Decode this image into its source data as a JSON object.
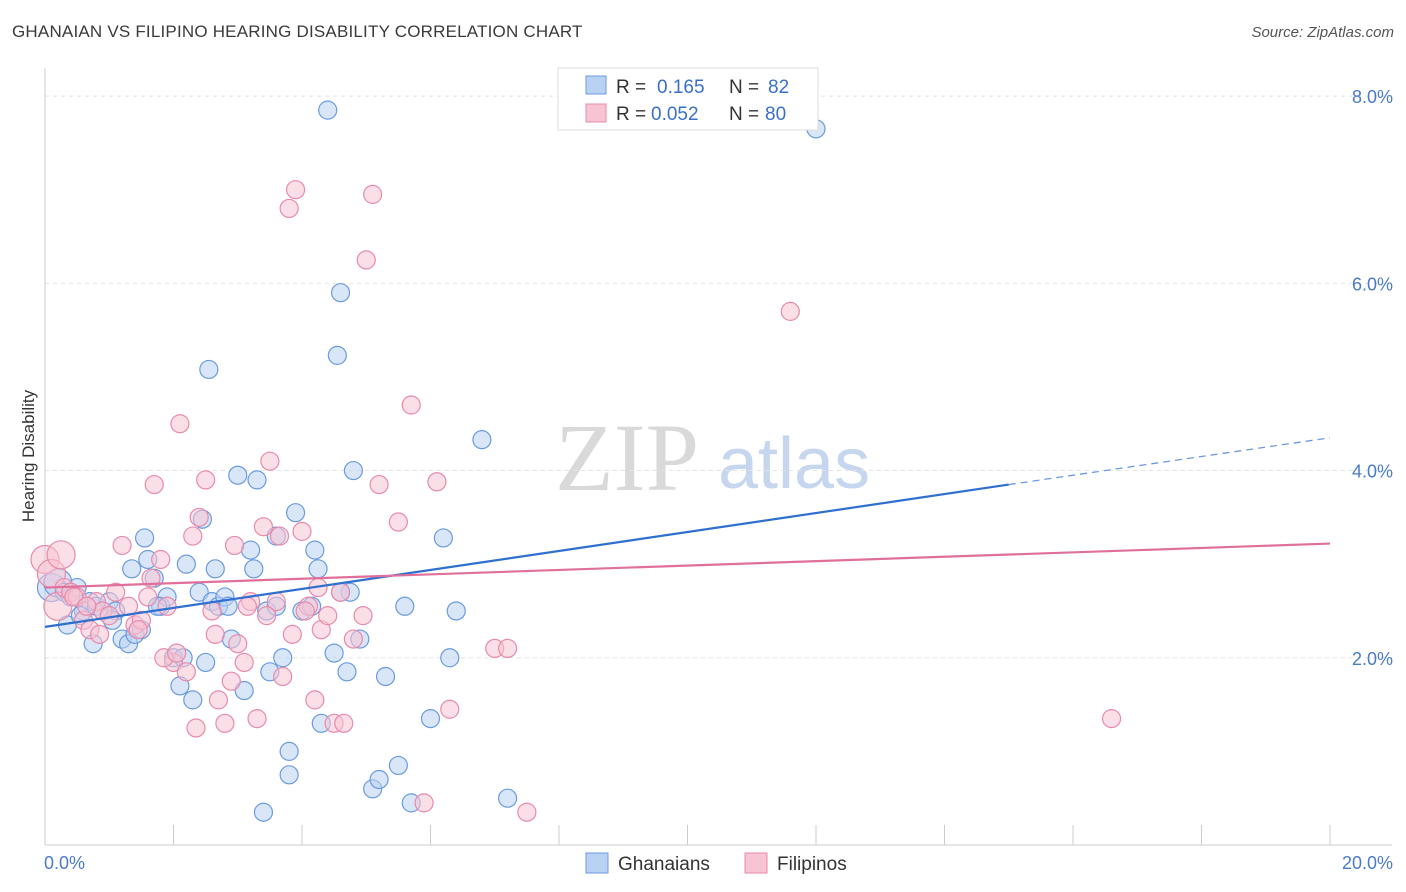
{
  "header": {
    "title": "GHANAIAN VS FILIPINO HEARING DISABILITY CORRELATION CHART",
    "source": "Source: ZipAtlas.com"
  },
  "watermark": {
    "zip": "ZIP",
    "atlas": "atlas"
  },
  "chart_data": {
    "type": "scatter",
    "title": "GHANAIAN VS FILIPINO HEARING DISABILITY CORRELATION CHART",
    "ylabel": "Hearing Disability",
    "xlabel": "",
    "xlim": [
      0,
      20
    ],
    "ylim": [
      0,
      8.3
    ],
    "x_tick_labels": [
      "0.0%",
      "20.0%"
    ],
    "y_ticks": [
      2,
      4,
      6,
      8
    ],
    "y_tick_labels": [
      "2.0%",
      "4.0%",
      "6.0%",
      "8.0%"
    ],
    "grid": true,
    "legend_position": "top-center",
    "series": [
      {
        "name": "Ghanaians",
        "color": "#6a9be0",
        "fill": "#b9d1f3",
        "R": "0.165",
        "N": "82",
        "trend": {
          "x0": 0,
          "y0": 2.33,
          "x1": 15.0,
          "y1": 3.85,
          "x_dash_end": 20,
          "y_dash_end": 4.35
        },
        "points": [
          [
            0.1,
            2.75
          ],
          [
            0.2,
            2.8
          ],
          [
            0.3,
            2.7
          ],
          [
            0.4,
            2.65
          ],
          [
            0.5,
            2.75
          ],
          [
            0.6,
            2.5
          ],
          [
            0.7,
            2.6
          ],
          [
            0.8,
            2.55
          ],
          [
            0.9,
            2.5
          ],
          [
            1.0,
            2.6
          ],
          [
            1.1,
            2.5
          ],
          [
            1.2,
            2.2
          ],
          [
            1.3,
            2.15
          ],
          [
            1.4,
            2.25
          ],
          [
            1.5,
            2.3
          ],
          [
            1.6,
            3.05
          ],
          [
            1.7,
            2.85
          ],
          [
            1.8,
            2.55
          ],
          [
            1.9,
            2.65
          ],
          [
            2.0,
            2.0
          ],
          [
            2.1,
            1.7
          ],
          [
            2.2,
            3.0
          ],
          [
            2.3,
            1.55
          ],
          [
            2.4,
            2.7
          ],
          [
            2.5,
            1.95
          ],
          [
            2.6,
            2.6
          ],
          [
            2.7,
            2.55
          ],
          [
            2.8,
            2.65
          ],
          [
            2.9,
            2.2
          ],
          [
            3.0,
            3.95
          ],
          [
            3.1,
            1.65
          ],
          [
            3.2,
            3.15
          ],
          [
            3.3,
            3.9
          ],
          [
            3.4,
            0.35
          ],
          [
            3.5,
            1.85
          ],
          [
            3.6,
            3.3
          ],
          [
            3.7,
            2.0
          ],
          [
            3.8,
            1.0
          ],
          [
            3.9,
            3.55
          ],
          [
            4.0,
            2.5
          ],
          [
            4.2,
            3.15
          ],
          [
            4.3,
            1.3
          ],
          [
            4.4,
            7.85
          ],
          [
            4.5,
            2.05
          ],
          [
            4.6,
            5.9
          ],
          [
            4.7,
            1.85
          ],
          [
            4.8,
            4.0
          ],
          [
            4.9,
            2.2
          ],
          [
            5.1,
            0.6
          ],
          [
            5.2,
            0.7
          ],
          [
            5.3,
            1.8
          ],
          [
            5.5,
            0.85
          ],
          [
            5.7,
            0.45
          ],
          [
            6.0,
            1.35
          ],
          [
            6.2,
            3.28
          ],
          [
            6.3,
            2.0
          ],
          [
            6.4,
            2.5
          ],
          [
            6.8,
            4.33
          ],
          [
            7.2,
            0.5
          ],
          [
            1.35,
            2.95
          ],
          [
            0.35,
            2.35
          ],
          [
            0.55,
            2.45
          ],
          [
            1.05,
            2.4
          ],
          [
            1.55,
            3.28
          ],
          [
            2.45,
            3.48
          ],
          [
            2.55,
            5.08
          ],
          [
            2.65,
            2.95
          ],
          [
            4.55,
            5.23
          ],
          [
            4.75,
            2.7
          ],
          [
            3.25,
            2.95
          ],
          [
            0.75,
            2.15
          ],
          [
            1.75,
            2.55
          ],
          [
            2.85,
            2.55
          ],
          [
            4.25,
            2.95
          ],
          [
            3.45,
            2.5
          ],
          [
            4.15,
            2.55
          ],
          [
            2.15,
            2.0
          ],
          [
            3.6,
            2.55
          ],
          [
            3.8,
            0.75
          ],
          [
            4.6,
            2.7
          ],
          [
            5.6,
            2.55
          ],
          [
            12.0,
            7.65
          ]
        ]
      },
      {
        "name": "Filipinos",
        "color": "#e88aab",
        "fill": "#f7c4d4",
        "R": "0.052",
        "N": "80",
        "trend": {
          "x0": 0,
          "y0": 2.75,
          "x1": 20,
          "y1": 3.22
        },
        "points": [
          [
            0.0,
            3.05
          ],
          [
            0.1,
            2.9
          ],
          [
            0.2,
            2.55
          ],
          [
            0.3,
            2.75
          ],
          [
            0.4,
            2.7
          ],
          [
            0.5,
            2.65
          ],
          [
            0.6,
            2.4
          ],
          [
            0.7,
            2.3
          ],
          [
            0.8,
            2.6
          ],
          [
            0.9,
            2.5
          ],
          [
            1.0,
            2.45
          ],
          [
            1.1,
            2.7
          ],
          [
            1.2,
            3.2
          ],
          [
            1.3,
            2.55
          ],
          [
            1.4,
            2.35
          ],
          [
            1.5,
            2.4
          ],
          [
            1.6,
            2.65
          ],
          [
            1.7,
            3.85
          ],
          [
            1.8,
            3.05
          ],
          [
            1.9,
            2.55
          ],
          [
            2.0,
            1.95
          ],
          [
            2.1,
            4.5
          ],
          [
            2.2,
            1.85
          ],
          [
            2.3,
            3.3
          ],
          [
            2.4,
            3.5
          ],
          [
            2.5,
            3.9
          ],
          [
            2.6,
            2.5
          ],
          [
            2.7,
            1.55
          ],
          [
            2.8,
            1.3
          ],
          [
            2.9,
            1.75
          ],
          [
            3.0,
            2.15
          ],
          [
            3.1,
            1.95
          ],
          [
            3.2,
            2.6
          ],
          [
            3.3,
            1.35
          ],
          [
            3.4,
            3.4
          ],
          [
            3.5,
            4.1
          ],
          [
            3.6,
            2.6
          ],
          [
            3.7,
            1.8
          ],
          [
            3.8,
            6.8
          ],
          [
            3.9,
            7.0
          ],
          [
            4.0,
            3.35
          ],
          [
            4.1,
            2.55
          ],
          [
            4.2,
            1.55
          ],
          [
            4.3,
            2.3
          ],
          [
            4.4,
            2.45
          ],
          [
            4.5,
            1.3
          ],
          [
            4.6,
            2.7
          ],
          [
            4.8,
            2.2
          ],
          [
            5.0,
            6.25
          ],
          [
            5.1,
            6.95
          ],
          [
            5.2,
            3.85
          ],
          [
            5.5,
            3.45
          ],
          [
            5.7,
            4.7
          ],
          [
            5.9,
            0.45
          ],
          [
            6.1,
            3.88
          ],
          [
            6.3,
            1.45
          ],
          [
            7.0,
            2.1
          ],
          [
            7.2,
            2.1
          ],
          [
            7.5,
            0.35
          ],
          [
            11.6,
            5.7
          ],
          [
            16.6,
            1.35
          ],
          [
            0.25,
            3.1
          ],
          [
            0.45,
            2.65
          ],
          [
            0.65,
            2.55
          ],
          [
            0.85,
            2.25
          ],
          [
            1.45,
            2.3
          ],
          [
            1.65,
            2.85
          ],
          [
            1.85,
            2.0
          ],
          [
            2.05,
            2.05
          ],
          [
            2.35,
            1.25
          ],
          [
            2.65,
            2.25
          ],
          [
            2.95,
            3.2
          ],
          [
            3.15,
            2.55
          ],
          [
            3.45,
            2.45
          ],
          [
            3.65,
            3.3
          ],
          [
            3.85,
            2.25
          ],
          [
            4.05,
            2.5
          ],
          [
            4.25,
            2.75
          ],
          [
            4.65,
            1.3
          ],
          [
            4.95,
            2.45
          ]
        ]
      }
    ]
  },
  "legend": {
    "r_label": "R =",
    "n_label": "N =",
    "ghanaian_r": "0.165",
    "ghanaian_n": "82",
    "filipino_r": "0.052",
    "filipino_n": "80"
  },
  "bottom_legend": {
    "ghanaians": "Ghanaians",
    "filipinos": "Filipinos"
  }
}
